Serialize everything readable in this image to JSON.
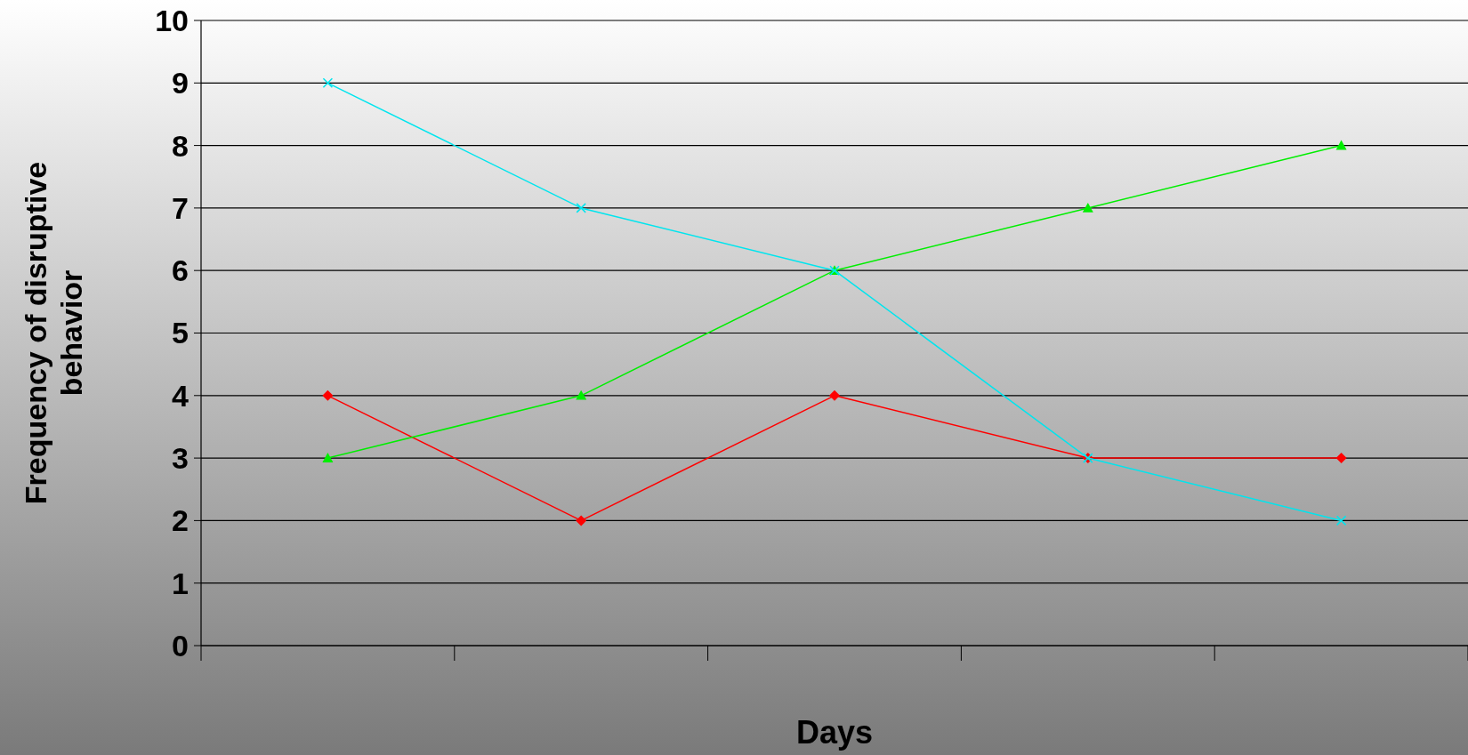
{
  "chart_data": {
    "type": "line",
    "xlabel": "Days",
    "ylabel": "Frequency of disruptive behavior",
    "categories": [
      null,
      null,
      null,
      null,
      null
    ],
    "ylim": [
      0,
      10
    ],
    "yticks": [
      0,
      1,
      2,
      3,
      4,
      5,
      6,
      7,
      8,
      9,
      10
    ],
    "grid": "y",
    "series": [
      {
        "color": "#ff0000",
        "marker": "diamond",
        "values": [
          4,
          2,
          4,
          3,
          3
        ]
      },
      {
        "color": "#00ee00",
        "marker": "triangle",
        "values": [
          3,
          4,
          6,
          7,
          8
        ]
      },
      {
        "color": "#00e5ee",
        "marker": "cross",
        "values": [
          9,
          7,
          6,
          3,
          2
        ]
      }
    ]
  }
}
